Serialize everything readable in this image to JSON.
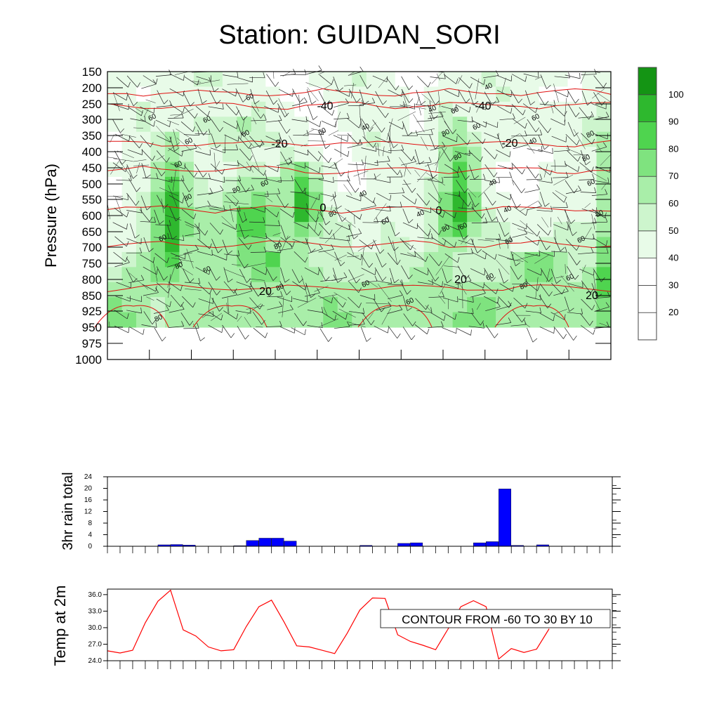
{
  "title": "Station: GUIDAN_SORI",
  "chart_data": [
    {
      "type": "heatmap",
      "name": "humidity-temperature-cross-section",
      "ylabel": "Pressure (hPa)",
      "y_ticks": [
        "150",
        "200",
        "250",
        "300",
        "350",
        "400",
        "450",
        "500",
        "550",
        "600",
        "650",
        "700",
        "750",
        "800",
        "850",
        "925",
        "950",
        "975",
        "1000"
      ],
      "colorbar": {
        "labels": [
          "20",
          "30",
          "40",
          "50",
          "60",
          "70",
          "80",
          "90",
          "100"
        ],
        "colors": [
          "#ffffff",
          "#ffffff",
          "#ffffff",
          "#e8fbe8",
          "#cdf5cd",
          "#a9eea9",
          "#7fe37f",
          "#4fd44f",
          "#2eb82e",
          "#149414"
        ]
      },
      "filled_levels": [
        [
          1,
          1,
          1,
          1,
          1,
          1,
          2,
          2,
          1,
          1,
          1,
          0,
          0,
          0,
          1,
          1,
          1,
          2,
          1,
          1,
          0,
          0,
          0,
          1,
          1,
          1,
          2,
          1,
          1,
          1,
          1,
          1,
          0,
          1,
          1
        ],
        [
          1,
          1,
          0,
          1,
          1,
          1,
          1,
          1,
          1,
          1,
          1,
          1,
          0,
          0,
          0,
          1,
          1,
          1,
          1,
          1,
          1,
          0,
          1,
          1,
          1,
          1,
          1,
          2,
          1,
          1,
          0,
          0,
          0,
          1,
          1
        ],
        [
          1,
          1,
          2,
          1,
          1,
          1,
          1,
          1,
          1,
          1,
          2,
          1,
          1,
          0,
          0,
          0,
          1,
          1,
          1,
          1,
          1,
          0,
          1,
          2,
          1,
          1,
          1,
          1,
          1,
          1,
          1,
          1,
          1,
          1,
          2
        ],
        [
          1,
          1,
          2,
          1,
          1,
          1,
          2,
          2,
          2,
          3,
          2,
          1,
          1,
          1,
          0,
          0,
          1,
          1,
          1,
          1,
          1,
          0,
          1,
          2,
          3,
          1,
          1,
          1,
          1,
          1,
          1,
          1,
          1,
          2,
          2
        ],
        [
          0,
          1,
          1,
          2,
          3,
          1,
          1,
          2,
          2,
          2,
          2,
          2,
          1,
          1,
          0,
          0,
          0,
          1,
          2,
          1,
          1,
          1,
          1,
          3,
          3,
          2,
          1,
          1,
          1,
          1,
          1,
          1,
          1,
          2,
          3
        ],
        [
          0,
          1,
          1,
          2,
          3,
          2,
          1,
          1,
          2,
          2,
          1,
          1,
          2,
          1,
          1,
          0,
          0,
          1,
          1,
          1,
          1,
          1,
          1,
          3,
          4,
          3,
          1,
          1,
          0,
          0,
          0,
          1,
          1,
          1,
          3
        ],
        [
          1,
          1,
          1,
          3,
          4,
          3,
          1,
          1,
          1,
          2,
          2,
          1,
          3,
          4,
          2,
          1,
          0,
          0,
          1,
          1,
          1,
          1,
          1,
          3,
          5,
          3,
          1,
          0,
          0,
          0,
          1,
          1,
          1,
          1,
          3
        ],
        [
          0,
          1,
          1,
          3,
          5,
          3,
          2,
          1,
          2,
          3,
          3,
          3,
          3,
          5,
          3,
          1,
          0,
          0,
          1,
          1,
          1,
          1,
          2,
          3,
          5,
          3,
          1,
          0,
          0,
          0,
          1,
          1,
          1,
          1,
          3
        ],
        [
          0,
          1,
          2,
          4,
          6,
          3,
          2,
          2,
          3,
          3,
          4,
          3,
          3,
          6,
          4,
          1,
          1,
          1,
          1,
          1,
          1,
          1,
          2,
          4,
          6,
          4,
          1,
          1,
          0,
          0,
          1,
          1,
          1,
          1,
          3
        ],
        [
          1,
          1,
          2,
          4,
          6,
          4,
          3,
          3,
          3,
          5,
          5,
          4,
          3,
          6,
          4,
          2,
          1,
          1,
          1,
          1,
          1,
          1,
          2,
          4,
          6,
          4,
          2,
          1,
          1,
          1,
          1,
          1,
          1,
          1,
          3
        ],
        [
          1,
          1,
          2,
          4,
          6,
          4,
          3,
          3,
          3,
          5,
          5,
          4,
          3,
          4,
          3,
          2,
          2,
          1,
          1,
          2,
          1,
          1,
          2,
          4,
          5,
          3,
          2,
          2,
          1,
          1,
          1,
          2,
          2,
          2,
          3
        ],
        [
          1,
          1,
          2,
          4,
          6,
          3,
          3,
          3,
          3,
          4,
          4,
          3,
          3,
          3,
          2,
          2,
          2,
          1,
          1,
          2,
          2,
          1,
          2,
          3,
          3,
          2,
          2,
          2,
          1,
          1,
          2,
          2,
          2,
          2,
          4
        ],
        [
          1,
          2,
          3,
          4,
          5,
          3,
          3,
          3,
          3,
          4,
          4,
          5,
          3,
          3,
          2,
          2,
          2,
          2,
          2,
          2,
          2,
          2,
          3,
          3,
          2,
          2,
          2,
          2,
          3,
          4,
          4,
          3,
          2,
          2,
          4
        ],
        [
          2,
          3,
          3,
          4,
          4,
          3,
          3,
          3,
          3,
          3,
          4,
          4,
          3,
          3,
          3,
          2,
          2,
          2,
          2,
          2,
          2,
          3,
          3,
          3,
          2,
          2,
          2,
          2,
          3,
          4,
          4,
          3,
          2,
          3,
          5
        ],
        [
          3,
          3,
          3,
          3,
          3,
          3,
          3,
          3,
          3,
          3,
          3,
          3,
          3,
          3,
          3,
          3,
          3,
          3,
          3,
          3,
          3,
          3,
          3,
          3,
          3,
          3,
          3,
          3,
          3,
          3,
          3,
          3,
          3,
          3,
          5
        ],
        [
          4,
          3,
          3,
          2,
          3,
          3,
          3,
          3,
          3,
          3,
          3,
          3,
          3,
          3,
          3,
          4,
          3,
          3,
          3,
          3,
          3,
          3,
          3,
          3,
          3,
          4,
          4,
          3,
          3,
          3,
          3,
          3,
          3,
          3,
          4
        ],
        [
          4,
          4,
          3,
          2,
          3,
          3,
          3,
          3,
          3,
          3,
          3,
          3,
          3,
          3,
          3,
          4,
          4,
          3,
          3,
          3,
          3,
          3,
          3,
          3,
          4,
          4,
          4,
          3,
          3,
          3,
          3,
          3,
          3,
          3,
          4
        ]
      ],
      "contour_labels": {
        "humidity": [
          "60",
          "60",
          "60",
          "60",
          "60",
          "60",
          "60",
          "60",
          "80",
          "80",
          "80",
          "80",
          "80",
          "80",
          "80",
          "40",
          "40",
          "40",
          "40",
          "60",
          "60",
          "60",
          "60",
          "60",
          "60",
          "80",
          "80",
          "80",
          "80",
          "40",
          "40",
          "40",
          "40",
          "60",
          "60",
          "60",
          "80",
          "80",
          "60",
          "60",
          "60",
          "60",
          "60",
          "80"
        ],
        "temperature": [
          "-40",
          "-40",
          "-20",
          "-20",
          "0",
          "0",
          "0",
          "20",
          "20",
          "20"
        ]
      },
      "temperature_isolines": [
        -40,
        -40,
        -20,
        0,
        0,
        20,
        20
      ]
    },
    {
      "type": "bar",
      "name": "rainfall",
      "ylabel": "3hr rain total",
      "y_ticks": [
        "0",
        "4",
        "8",
        "12",
        "16",
        "20",
        "24"
      ],
      "ylim": [
        0,
        24
      ],
      "values": [
        0,
        0,
        0,
        0,
        0.5,
        0.6,
        0.4,
        0,
        0,
        0,
        0.2,
        2.0,
        2.8,
        2.8,
        1.8,
        0,
        0,
        0,
        0,
        0,
        0.3,
        0,
        0,
        1.0,
        1.2,
        0,
        0,
        0,
        0,
        1.2,
        1.6,
        19.8,
        0.3,
        0,
        0.5,
        0,
        0,
        0,
        0,
        0
      ],
      "color": "#0000ff"
    },
    {
      "type": "line",
      "name": "temperature-2m",
      "ylabel": "Temp at 2m",
      "y_ticks": [
        "24.0",
        "27.0",
        "30.0",
        "33.0",
        "36.0"
      ],
      "ylim": [
        24,
        37
      ],
      "values": [
        25.8,
        25.4,
        25.9,
        30.9,
        34.8,
        36.8,
        29.6,
        28.5,
        26.5,
        25.8,
        26.0,
        30.2,
        33.8,
        35.0,
        31.0,
        26.7,
        26.5,
        25.9,
        25.3,
        29.0,
        33.2,
        35.4,
        35.3,
        28.7,
        27.5,
        26.8,
        26.0,
        29.8,
        33.8,
        34.9,
        33.8,
        24.3,
        26.2,
        25.5,
        26.1,
        29.8
      ],
      "color": "#ff0000",
      "annotation": "CONTOUR FROM -60 TO 30 BY 10"
    }
  ]
}
